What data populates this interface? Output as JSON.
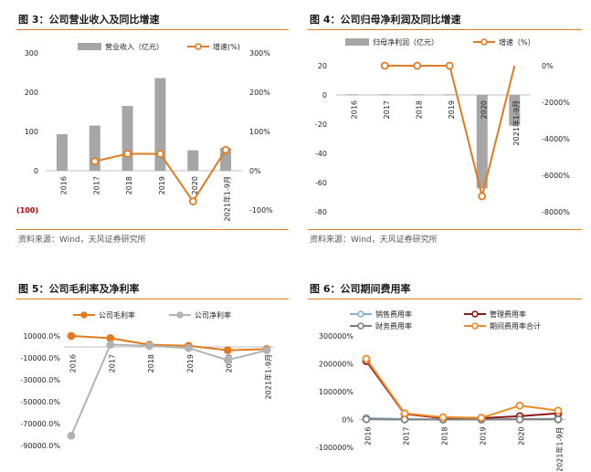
{
  "figures": [
    {
      "title": "图 3：公司营业收入及同比增速",
      "source": "资料来源：Wind，天风证券研究所"
    },
    {
      "title": "图 4：公司归母净利润及同比增速",
      "source": "资料来源：Wind，天风证券研究所"
    },
    {
      "title": "图 5：公司毛利率及净利率",
      "source": ""
    },
    {
      "title": "图 6：公司期间费用率",
      "source": ""
    }
  ],
  "colors": {
    "accent": "#e07b21",
    "bar": "#a6a6a6",
    "gray_line": "#b3b3b3",
    "sell": "#7fb2d9",
    "mgmt": "#8b1a1a",
    "fin": "#7f7f7f",
    "total": "#f08a24",
    "red_tick": "#c00000"
  },
  "chart_data": [
    {
      "type": "bar+line",
      "categories": [
        "2016",
        "2017",
        "2018",
        "2019",
        "2020",
        "2021年1-9月"
      ],
      "series": [
        {
          "name": "营业收入（亿元）",
          "type": "bar",
          "axis": "left",
          "values": [
            93,
            115,
            165,
            236,
            52,
            58
          ]
        },
        {
          "name": "增速(%)",
          "type": "line",
          "axis": "right",
          "values": [
            null,
            24,
            43,
            43,
            -78,
            53
          ]
        }
      ],
      "y_left": {
        "ticks": [
          "300",
          "200",
          "100",
          "0",
          "(100)"
        ],
        "min": -100,
        "max": 300
      },
      "y_right": {
        "ticks": [
          "300%",
          "200%",
          "100%",
          "0%",
          "-100%"
        ],
        "min": -100,
        "max": 300
      }
    },
    {
      "type": "bar+line",
      "categories": [
        "2016",
        "2017",
        "2018",
        "2019",
        "2020",
        "2021年1-9月"
      ],
      "series": [
        {
          "name": "归母净利润（亿元）",
          "type": "bar",
          "axis": "left",
          "values": [
            0.4,
            0.4,
            0.4,
            0.4,
            -64,
            -21
          ]
        },
        {
          "name": "增速（%）",
          "type": "line",
          "axis": "right",
          "values": [
            null,
            0,
            0,
            0,
            -7150,
            0
          ]
        }
      ],
      "y_left": {
        "ticks": [
          "20",
          "0",
          "-20",
          "-40",
          "-60",
          "-80"
        ],
        "min": -80,
        "max": 20
      },
      "y_right": {
        "ticks": [
          "0%",
          "-2000%",
          "-4000%",
          "-6000%",
          "-8000%"
        ],
        "min": -8000,
        "max": 0
      }
    },
    {
      "type": "line",
      "categories": [
        "2016",
        "2017",
        "2018",
        "2019",
        "2020",
        "2021年1-9月"
      ],
      "series": [
        {
          "name": "公司毛利率",
          "values": [
            10000,
            8000,
            2000,
            1000,
            -3000,
            -2000
          ]
        },
        {
          "name": "公司净利率",
          "values": [
            -81000,
            2000,
            1000,
            -1000,
            -12000,
            -3000
          ]
        }
      ],
      "y": {
        "ticks": [
          "10000.0%",
          "-10000.0%",
          "-30000.0%",
          "-50000.0%",
          "-70000.0%",
          "-90000.0%"
        ],
        "min": -90000,
        "max": 10000
      }
    },
    {
      "type": "line",
      "categories": [
        "2016",
        "2017",
        "2018",
        "2019",
        "2020",
        "2021年1-9月"
      ],
      "series": [
        {
          "name": "销售费用率",
          "values": [
            5000,
            1500,
            300,
            300,
            1800,
            3000
          ]
        },
        {
          "name": "管理费用率",
          "values": [
            210000,
            20000,
            5000,
            5000,
            12000,
            22000
          ]
        },
        {
          "name": "财务费用率",
          "values": [
            1000,
            200,
            100,
            100,
            300,
            500
          ]
        },
        {
          "name": "期间费用率合计",
          "values": [
            218000,
            22000,
            8000,
            6000,
            50000,
            32000
          ]
        }
      ],
      "y": {
        "ticks": [
          "300000%",
          "200000%",
          "100000%",
          "0%",
          "-100000%"
        ],
        "min": -100000,
        "max": 300000
      }
    }
  ]
}
